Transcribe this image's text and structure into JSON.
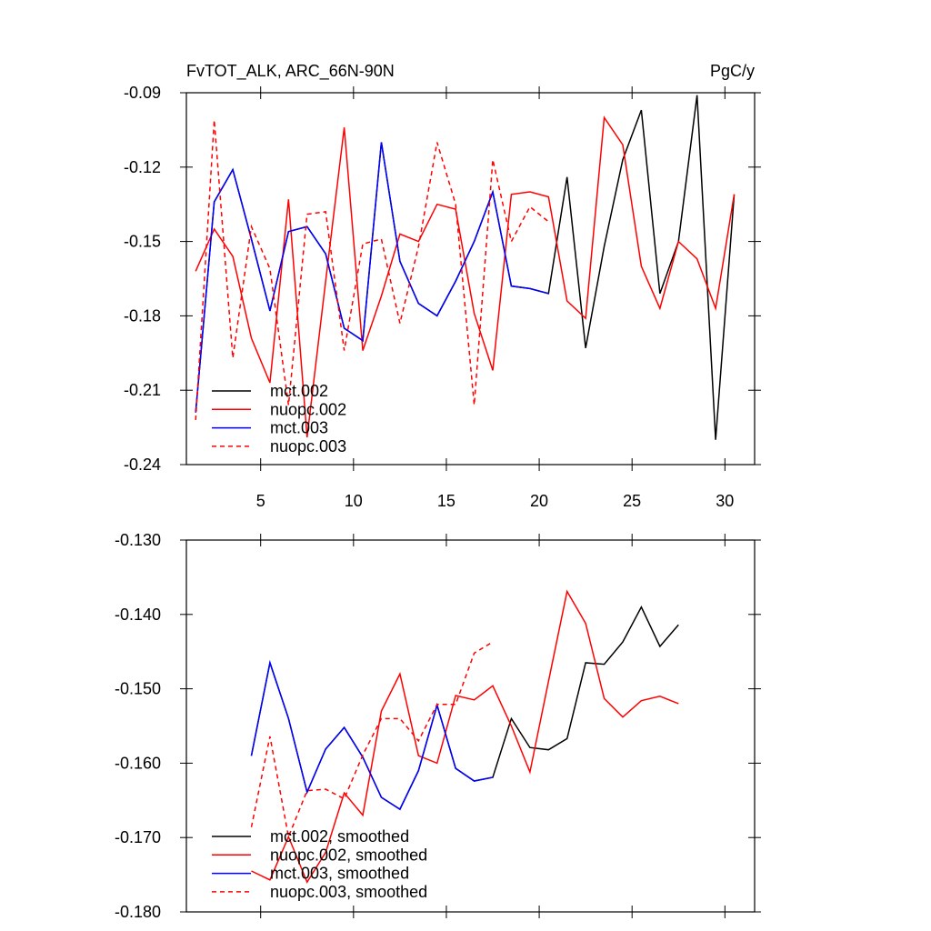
{
  "chart_data": [
    {
      "type": "line",
      "title": "FvTOT_ALK, ARC_66N-90N",
      "subtitle": "PgC/y",
      "x": [
        1.5,
        2.5,
        3.5,
        4.5,
        5.5,
        6.5,
        7.5,
        8.5,
        9.5,
        10.5,
        11.5,
        12.5,
        13.5,
        14.5,
        15.5,
        16.5,
        17.5,
        18.5,
        19.5,
        20.5,
        21.5,
        22.5,
        23.5,
        24.5,
        25.5,
        26.5,
        27.5,
        28.5,
        29.5,
        30.5
      ],
      "xlim": [
        1,
        31.6
      ],
      "xticks": [
        5,
        10,
        15,
        20,
        25,
        30
      ],
      "ylim": [
        -0.24,
        -0.09
      ],
      "yticks": [
        -0.09,
        -0.12,
        -0.15,
        -0.18,
        -0.21,
        -0.24
      ],
      "legend": "lower left",
      "series": [
        {
          "name": "mct.002",
          "color": "#000000",
          "dashed": false,
          "values": [
            -0.219,
            -0.134,
            -0.121,
            -0.149,
            -0.178,
            -0.146,
            -0.144,
            -0.155,
            -0.185,
            -0.19,
            -0.11,
            -0.158,
            -0.175,
            -0.18,
            -0.166,
            -0.15,
            -0.13,
            -0.168,
            -0.169,
            -0.171,
            -0.124,
            -0.193,
            -0.152,
            -0.117,
            -0.097,
            -0.171,
            -0.15,
            -0.091,
            -0.23,
            -0.131
          ]
        },
        {
          "name": "nuopc.002",
          "color": "#ff0000",
          "dashed": false,
          "values": [
            -0.162,
            -0.145,
            -0.156,
            -0.189,
            -0.207,
            -0.133,
            -0.229,
            -0.166,
            -0.104,
            -0.194,
            -0.172,
            -0.147,
            -0.15,
            -0.135,
            -0.137,
            -0.179,
            -0.202,
            -0.131,
            -0.13,
            -0.132,
            -0.174,
            -0.181,
            -0.1,
            -0.111,
            -0.16,
            -0.177,
            -0.15,
            -0.157,
            -0.177,
            -0.131
          ]
        },
        {
          "name": "mct.003",
          "color": "#0000ff",
          "dashed": false,
          "values": [
            -0.219,
            -0.134,
            -0.121,
            -0.149,
            -0.178,
            -0.146,
            -0.144,
            -0.155,
            -0.185,
            -0.19,
            -0.11,
            -0.158,
            -0.175,
            -0.18,
            -0.166,
            -0.15,
            -0.13,
            -0.168,
            -0.169,
            -0.171,
            null,
            null,
            null,
            null,
            null,
            null,
            null,
            null,
            null,
            null
          ]
        },
        {
          "name": "nuopc.003",
          "color": "#ff0000",
          "dashed": true,
          "values": [
            -0.222,
            -0.101,
            -0.197,
            -0.144,
            -0.161,
            -0.216,
            -0.139,
            -0.138,
            -0.194,
            -0.151,
            -0.149,
            -0.183,
            -0.152,
            -0.11,
            -0.135,
            -0.216,
            -0.117,
            -0.15,
            -0.136,
            -0.142,
            null,
            null,
            null,
            null,
            null,
            null,
            null,
            null,
            null,
            null
          ]
        }
      ]
    },
    {
      "type": "line",
      "x": [
        1.5,
        2.5,
        3.5,
        4.5,
        5.5,
        6.5,
        7.5,
        8.5,
        9.5,
        10.5,
        11.5,
        12.5,
        13.5,
        14.5,
        15.5,
        16.5,
        17.5,
        18.5,
        19.5,
        20.5,
        21.5,
        22.5,
        23.5,
        24.5,
        25.5,
        26.5,
        27.5,
        28.5,
        29.5,
        30.5
      ],
      "xlim": [
        1,
        31.6
      ],
      "xticks": [
        5,
        10,
        15,
        20,
        25,
        30
      ],
      "ylim": [
        -0.18,
        -0.13
      ],
      "yticks": [
        {
          "value": -0.13,
          "label": "-0.130"
        },
        {
          "value": -0.14,
          "label": "-0.140"
        },
        {
          "value": -0.15,
          "label": "-0.150"
        },
        {
          "value": -0.16,
          "label": "-0.160"
        },
        {
          "value": -0.17,
          "label": "-0.170"
        },
        {
          "value": -0.18,
          "label": "-0.180"
        }
      ],
      "legend": "lower left",
      "series": [
        {
          "name": "mct.002, smoothed",
          "color": "#000000",
          "dashed": false,
          "values": [
            null,
            null,
            null,
            -0.159,
            -0.1465,
            -0.154,
            -0.1639,
            -0.1581,
            -0.1552,
            -0.1592,
            -0.1646,
            -0.1662,
            -0.161,
            -0.1522,
            -0.1607,
            -0.1624,
            -0.1619,
            -0.154,
            -0.1579,
            -0.1582,
            -0.1567,
            -0.1465,
            -0.1467,
            -0.1437,
            -0.139,
            -0.1443,
            -0.1414,
            null,
            null,
            null
          ]
        },
        {
          "name": "nuopc.002, smoothed",
          "color": "#ff0000",
          "dashed": false,
          "values": [
            null,
            null,
            null,
            -0.1745,
            -0.1757,
            -0.1699,
            -0.176,
            -0.172,
            -0.164,
            -0.167,
            -0.153,
            -0.148,
            -0.159,
            -0.16,
            -0.1509,
            -0.1515,
            -0.1496,
            -0.155,
            -0.1612,
            -0.149,
            -0.1369,
            -0.1412,
            -0.1513,
            -0.1538,
            -0.1516,
            -0.151,
            -0.152,
            null,
            null,
            null
          ]
        },
        {
          "name": "mct.003, smoothed",
          "color": "#0000ff",
          "dashed": false,
          "values": [
            null,
            null,
            null,
            -0.159,
            -0.1465,
            -0.154,
            -0.1639,
            -0.1581,
            -0.1552,
            -0.1592,
            -0.1646,
            -0.1662,
            -0.161,
            -0.1522,
            -0.1607,
            -0.1624,
            -0.1619,
            null,
            null,
            null,
            null,
            null,
            null,
            null,
            null,
            null,
            null,
            null,
            null,
            null
          ]
        },
        {
          "name": "nuopc.003, smoothed",
          "color": "#ff0000",
          "dashed": true,
          "values": [
            null,
            null,
            null,
            -0.1686,
            -0.1564,
            -0.1699,
            -0.1637,
            -0.1635,
            -0.1648,
            -0.1589,
            -0.154,
            -0.154,
            -0.157,
            -0.1521,
            -0.1521,
            -0.1452,
            -0.1437,
            null,
            null,
            null,
            null,
            null,
            null,
            null,
            null,
            null,
            null,
            null,
            null,
            null
          ]
        }
      ]
    }
  ]
}
